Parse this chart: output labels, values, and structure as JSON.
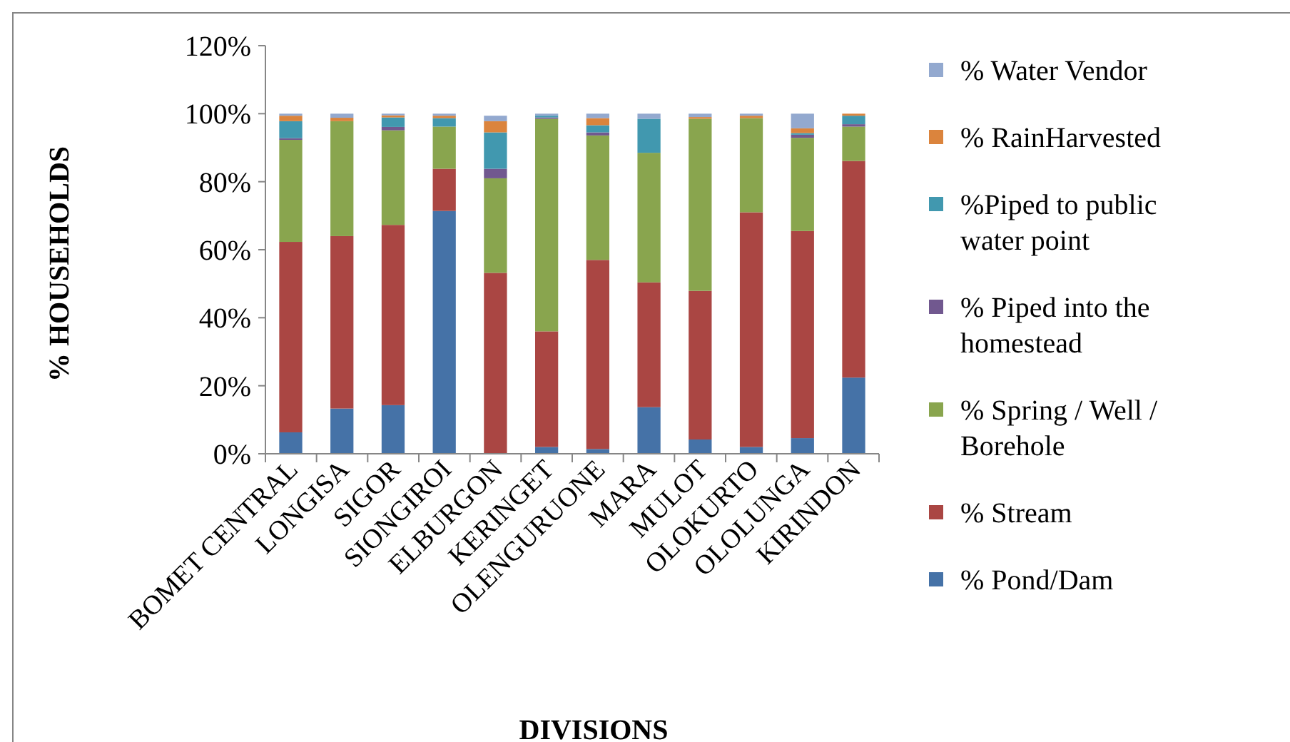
{
  "chart_data": {
    "type": "bar",
    "stacked": true,
    "xlabel": "DIVISIONS",
    "ylabel": "% HOUSEHOLDS",
    "categories": [
      "BOMET CENTRAL",
      "LONGISA",
      "SIGOR",
      "SIONGIROI",
      "ELBURGON",
      "KERINGET",
      "OLENGURUONE",
      "MARA",
      "MULOT",
      "OLOKURTO",
      "OLOLUNGA",
      "KIRINDON"
    ],
    "series": [
      {
        "name": "% Pond/Dam",
        "color": "#4572a7",
        "values": [
          6.3,
          13.3,
          14.3,
          71.4,
          0,
          2,
          1.4,
          13.7,
          4.2,
          2,
          4.6,
          22.4
        ]
      },
      {
        "name": "% Stream",
        "color": "#aa4643",
        "values": [
          56,
          50.7,
          53,
          12.4,
          53.2,
          34,
          55.6,
          36.7,
          43.7,
          69,
          60.9,
          63.7
        ]
      },
      {
        "name": "% Spring / Well / Borehole",
        "color": "#89a54e",
        "values": [
          30,
          33.8,
          27.8,
          12.4,
          27.8,
          62.5,
          36.6,
          38.1,
          50.6,
          27.7,
          27.4,
          10.1
        ]
      },
      {
        "name": "% Piped into the homestead",
        "color": "#71588f",
        "values": [
          0.5,
          0,
          1,
          0,
          2.8,
          0.4,
          0.9,
          0,
          0,
          0,
          0.9,
          0.7
        ]
      },
      {
        "name": "%Piped to public water point",
        "color": "#4198af",
        "values": [
          5,
          0,
          2.8,
          2.5,
          10.7,
          0.5,
          2.1,
          10,
          0,
          0,
          0.5,
          2.5
        ]
      },
      {
        "name": "% RainHarvested",
        "color": "#db843d",
        "values": [
          1.6,
          1,
          0.6,
          0.7,
          3.3,
          0,
          2.1,
          0,
          0.5,
          0.7,
          1.4,
          0.6
        ]
      },
      {
        "name": "% Water Vendor",
        "color": "#93a9cf",
        "values": [
          0.6,
          1.2,
          0.5,
          0.6,
          1.6,
          0.6,
          1.3,
          1.5,
          1,
          0.6,
          4.3,
          0
        ]
      }
    ],
    "ylim": [
      0,
      120
    ],
    "yticks": [
      {
        "value": 0,
        "label": "0%"
      },
      {
        "value": 20,
        "label": "20%"
      },
      {
        "value": 40,
        "label": "40%"
      },
      {
        "value": 60,
        "label": "60%"
      },
      {
        "value": 80,
        "label": "80%"
      },
      {
        "value": 100,
        "label": "100%"
      },
      {
        "value": 120,
        "label": "120%"
      }
    ],
    "grid": false,
    "legend": "right"
  }
}
